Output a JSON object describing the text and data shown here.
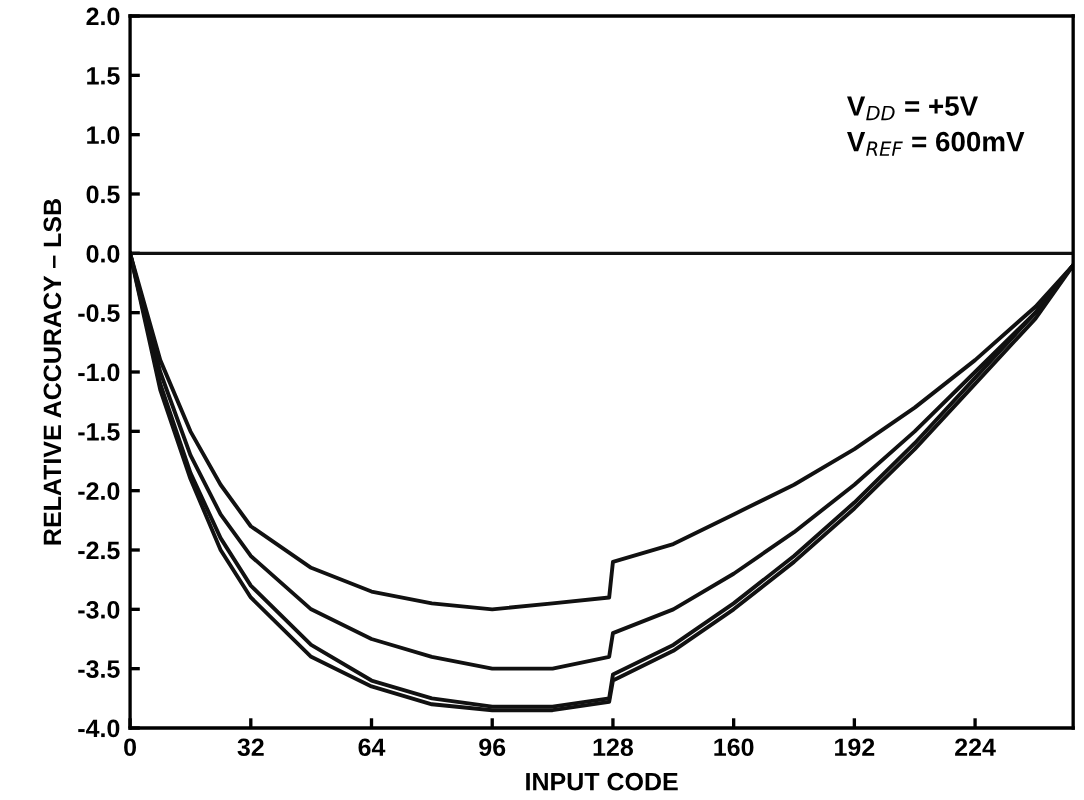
{
  "chart_data": {
    "type": "line",
    "xlabel": "INPUT CODE",
    "ylabel": "RELATIVE ACCURACY – LSB",
    "xlim": [
      0,
      250
    ],
    "xticks": [
      0,
      32,
      64,
      96,
      128,
      160,
      192,
      224
    ],
    "ylim": [
      -4.0,
      2.0
    ],
    "yticks": [
      {
        "value": 2.0,
        "label": "2.0"
      },
      {
        "value": 1.5,
        "label": "1.5"
      },
      {
        "value": 1.0,
        "label": "1.0"
      },
      {
        "value": 0.5,
        "label": "0.5"
      },
      {
        "value": 0.0,
        "label": "0.0"
      },
      {
        "value": -0.5,
        "label": "-0.5"
      },
      {
        "value": -1.0,
        "label": "-1.0"
      },
      {
        "value": -1.5,
        "label": "-1.5"
      },
      {
        "value": -2.0,
        "label": "-2.0"
      },
      {
        "value": -2.5,
        "label": "-2.5"
      },
      {
        "value": -3.0,
        "label": "-3.0"
      },
      {
        "value": -3.5,
        "label": "-3.5"
      },
      {
        "value": -4.0,
        "label": "-4.0"
      }
    ],
    "x": [
      0,
      8,
      16,
      24,
      32,
      48,
      64,
      80,
      96,
      112,
      127,
      128,
      144,
      160,
      176,
      192,
      208,
      224,
      240,
      250
    ],
    "series": [
      {
        "color": "#111111",
        "values": [
          0,
          -0.9,
          -1.5,
          -1.95,
          -2.3,
          -2.65,
          -2.85,
          -2.95,
          -3.0,
          -2.95,
          -2.9,
          -2.6,
          -2.45,
          -2.2,
          -1.95,
          -1.65,
          -1.3,
          -0.9,
          -0.45,
          -0.1
        ]
      },
      {
        "color": "#111111",
        "values": [
          0,
          -1.0,
          -1.7,
          -2.2,
          -2.55,
          -3.0,
          -3.25,
          -3.4,
          -3.5,
          -3.5,
          -3.4,
          -3.2,
          -3.0,
          -2.7,
          -2.35,
          -1.95,
          -1.5,
          -1.0,
          -0.5,
          -0.1
        ]
      },
      {
        "color": "#111111",
        "values": [
          0,
          -1.1,
          -1.85,
          -2.4,
          -2.8,
          -3.3,
          -3.6,
          -3.75,
          -3.82,
          -3.82,
          -3.75,
          -3.55,
          -3.3,
          -2.95,
          -2.55,
          -2.1,
          -1.6,
          -1.05,
          -0.5,
          -0.1
        ]
      },
      {
        "color": "#111111",
        "values": [
          0,
          -1.15,
          -1.9,
          -2.5,
          -2.9,
          -3.4,
          -3.65,
          -3.8,
          -3.85,
          -3.85,
          -3.78,
          -3.6,
          -3.35,
          -3.0,
          -2.6,
          -2.15,
          -1.65,
          -1.1,
          -0.55,
          -0.1
        ]
      }
    ],
    "ref_lines": [
      {
        "axis": "y",
        "value": 0,
        "color": "#111111",
        "line_style": "solid"
      }
    ],
    "annotations": [
      "V$_{DD}$ = +5V",
      "V$_{REF}$ = 600mV"
    ],
    "grid": false,
    "legend": false,
    "marker": "none",
    "line_style": "solid"
  }
}
